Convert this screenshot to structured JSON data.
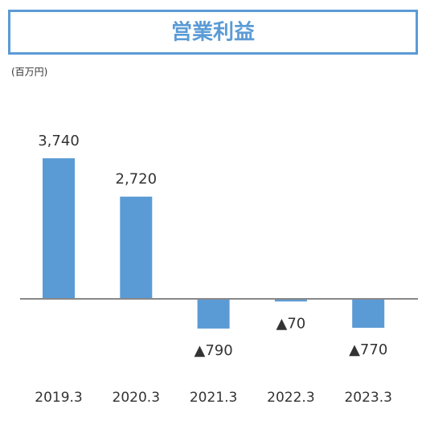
{
  "chart_data": {
    "type": "bar",
    "title": "営業利益",
    "subtitle": "(百万円)",
    "categories": [
      "2019.3",
      "2020.3",
      "2021.3",
      "2022.3",
      "2023.3"
    ],
    "values": [
      3740,
      2720,
      -790,
      -70,
      -770
    ],
    "value_labels": [
      "3,740",
      "2,720",
      "▲790",
      "▲70",
      "▲770"
    ],
    "color": "#5b9bd5"
  }
}
